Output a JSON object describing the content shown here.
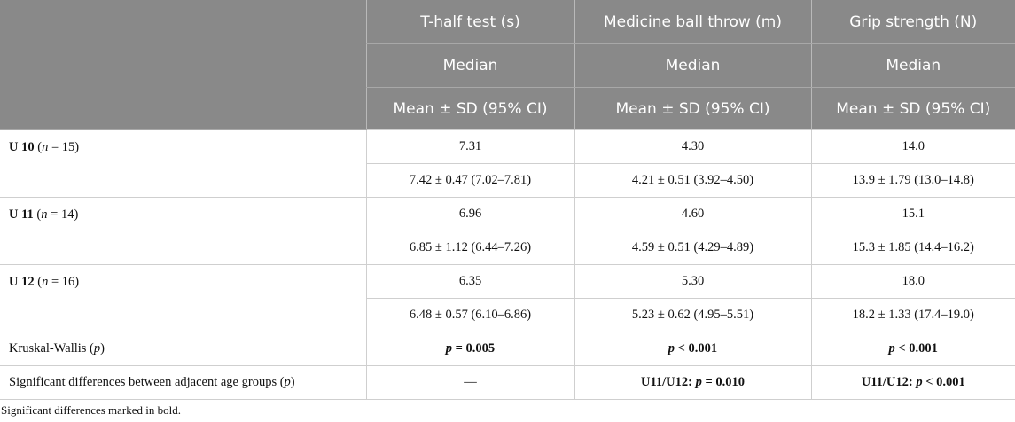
{
  "header": {
    "columns": [
      "T-half test (s)",
      "Medicine ball throw (m)",
      "Grip strength (N)"
    ],
    "sub1": "Median",
    "sub2": "Mean ± SD (95% CI)"
  },
  "groups": [
    {
      "label_bold": "U 10",
      "n_var": "n",
      "n_rest": " = 15)",
      "medians": [
        "7.31",
        "4.30",
        "14.0"
      ],
      "means": [
        "7.42 ± 0.47 (7.02–7.81)",
        "4.21 ± 0.51 (3.92–4.50)",
        "13.9 ± 1.79 (13.0–14.8)"
      ]
    },
    {
      "label_bold": "U 11",
      "n_var": "n",
      "n_rest": " = 14)",
      "medians": [
        "6.96",
        "4.60",
        "15.1"
      ],
      "means": [
        "6.85 ± 1.12 (6.44–7.26)",
        "4.59 ± 0.51 (4.29–4.89)",
        "15.3 ± 1.85 (14.4–16.2)"
      ]
    },
    {
      "label_bold": "U 12",
      "n_var": "n",
      "n_rest": " = 16)",
      "medians": [
        "6.35",
        "5.30",
        "18.0"
      ],
      "means": [
        "6.48 ± 0.57 (6.10–6.86)",
        "5.23 ± 0.62 (4.95–5.51)",
        "18.2 ± 1.33 (17.4–19.0)"
      ]
    }
  ],
  "kruskal": {
    "label": "Kruskal-Wallis (",
    "label_var": "p",
    "label_end": ")",
    "values": [
      "p = 0.005",
      "p < 0.001",
      "p < 0.001"
    ]
  },
  "significant": {
    "label": "Significant differences between adjacent age groups (",
    "label_var": "p",
    "label_end": ")",
    "values": [
      "—",
      "U11/U12: p = 0.010",
      "U11/U12: p < 0.001"
    ]
  },
  "footnote": "Significant differences marked in bold."
}
